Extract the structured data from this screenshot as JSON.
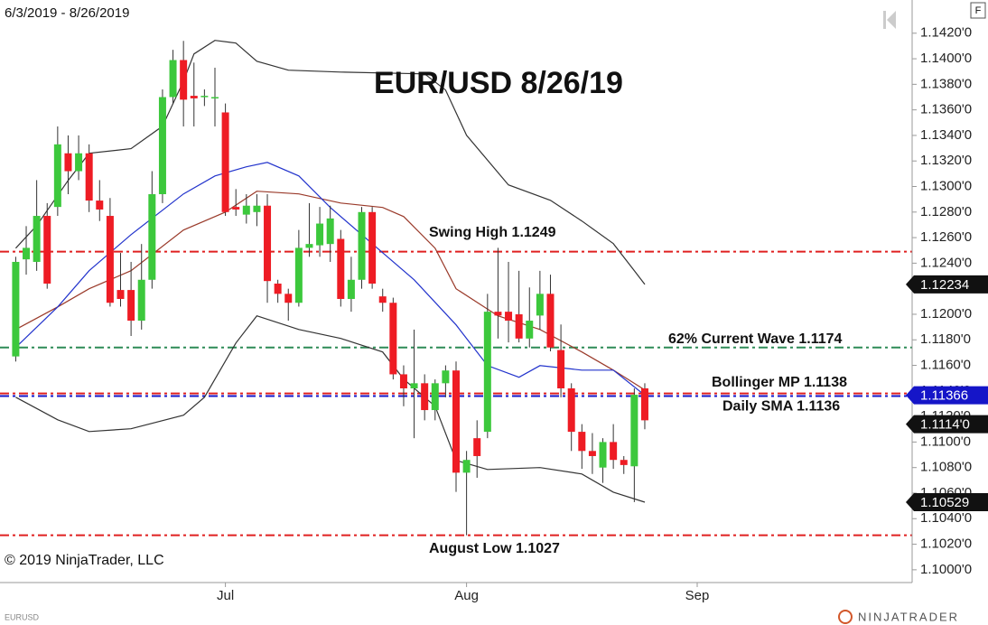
{
  "chart_data": {
    "type": "candlestick",
    "title": "EUR/USD 8/26/19",
    "date_range": "6/3/2019 - 8/26/2019",
    "copyright": "© 2019 NinjaTrader, LLC",
    "symbol": "EURUSD",
    "brand": "NINJATRADER",
    "up_color": "#3cc83c",
    "down_color": "#ee1c24",
    "open": [
      1.1167,
      1.1243,
      1.1241,
      1.1277,
      1.1284,
      1.1326,
      1.1312,
      1.1326,
      1.1289,
      1.1277,
      1.1219,
      1.1219,
      1.1195,
      1.1227,
      1.1294,
      1.137,
      1.1399,
      1.1371,
      1.137,
      1.137,
      1.1358,
      1.1284,
      1.1278,
      1.128,
      1.1285,
      1.1224,
      1.1216,
      1.1209,
      1.1252,
      1.1254,
      1.1255,
      1.1259,
      1.1212,
      1.1227,
      1.128,
      1.1214,
      1.1209,
      1.1153,
      1.1142,
      1.1146,
      1.1125,
      1.1146,
      1.1156,
      1.1076,
      1.1103,
      1.1108,
      1.1202,
      1.1202,
      1.12,
      1.1181,
      1.1199,
      1.1216,
      1.1172,
      1.1142,
      1.1108,
      1.1093,
      1.108,
      1.11,
      1.1086,
      1.1081,
      1.1142
    ],
    "high": [
      1.1245,
      1.1269,
      1.1305,
      1.1287,
      1.1347,
      1.134,
      1.134,
      1.1333,
      1.1305,
      1.1291,
      1.1248,
      1.1241,
      1.1255,
      1.1312,
      1.1376,
      1.1407,
      1.1414,
      1.1397,
      1.1376,
      1.1393,
      1.1365,
      1.1298,
      1.1294,
      1.1294,
      1.1294,
      1.1227,
      1.122,
      1.1266,
      1.1287,
      1.1284,
      1.1285,
      1.1266,
      1.1245,
      1.1284,
      1.1284,
      1.122,
      1.1213,
      1.116,
      1.1188,
      1.1153,
      1.1149,
      1.116,
      1.1163,
      1.1093,
      1.1117,
      1.1216,
      1.1252,
      1.1241,
      1.1234,
      1.1221,
      1.1234,
      1.1231,
      1.1192,
      1.1146,
      1.1114,
      1.1107,
      1.1103,
      1.1114,
      1.1089,
      1.1142,
      1.1146
    ],
    "low": [
      1.1163,
      1.1231,
      1.1234,
      1.122,
      1.1277,
      1.1294,
      1.1305,
      1.128,
      1.1273,
      1.1206,
      1.1206,
      1.1183,
      1.1188,
      1.122,
      1.1287,
      1.1365,
      1.1347,
      1.1347,
      1.1363,
      1.1347,
      1.1277,
      1.1277,
      1.1271,
      1.1269,
      1.1209,
      1.1209,
      1.1195,
      1.1206,
      1.1245,
      1.1245,
      1.1241,
      1.1206,
      1.1202,
      1.122,
      1.122,
      1.1202,
      1.1149,
      1.1128,
      1.1103,
      1.1117,
      1.1117,
      1.1135,
      1.1061,
      1.1027,
      1.1072,
      1.1103,
      1.1181,
      1.1178,
      1.1178,
      1.1174,
      1.1188,
      1.1171,
      1.1135,
      1.1093,
      1.1079,
      1.1075,
      1.1068,
      1.1079,
      1.1075,
      1.1053,
      1.111
    ],
    "close": [
      1.1241,
      1.1252,
      1.1277,
      1.1224,
      1.1333,
      1.1312,
      1.1326,
      1.1289,
      1.1282,
      1.1209,
      1.1212,
      1.1195,
      1.1227,
      1.1294,
      1.137,
      1.1399,
      1.1368,
      1.1369,
      1.1371,
      1.137,
      1.128,
      1.1282,
      1.1285,
      1.1285,
      1.1226,
      1.1216,
      1.1209,
      1.1252,
      1.1255,
      1.1271,
      1.1275,
      1.1212,
      1.1227,
      1.128,
      1.1224,
      1.1209,
      1.1153,
      1.1142,
      1.1146,
      1.1125,
      1.1146,
      1.1156,
      1.1076,
      1.1086,
      1.1089,
      1.1202,
      1.1199,
      1.1195,
      1.1181,
      1.1195,
      1.1216,
      1.1174,
      1.1142,
      1.1108,
      1.1093,
      1.1089,
      1.11,
      1.1086,
      1.1082,
      1.1137,
      1.1117
    ],
    "xlim": [
      -1.5,
      85.5
    ],
    "xticks": [
      {
        "value": 20,
        "label": "Jul"
      },
      {
        "value": 43,
        "label": "Aug"
      },
      {
        "value": 65,
        "label": "Sep"
      }
    ],
    "ylim": [
      1.099,
      1.1446
    ],
    "yticks": [
      {
        "value": 1.1,
        "label": "1.1000'0"
      },
      {
        "value": 1.102,
        "label": "1.1020'0"
      },
      {
        "value": 1.104,
        "label": "1.1040'0"
      },
      {
        "value": 1.106,
        "label": "1.1060'0"
      },
      {
        "value": 1.108,
        "label": "1.1080'0"
      },
      {
        "value": 1.11,
        "label": "1.1100'0"
      },
      {
        "value": 1.112,
        "label": "1.1120'0"
      },
      {
        "value": 1.114,
        "label": "1.1140'0"
      },
      {
        "value": 1.116,
        "label": "1.1160'0"
      },
      {
        "value": 1.118,
        "label": "1.1180'0"
      },
      {
        "value": 1.12,
        "label": "1.1200'0"
      },
      {
        "value": 1.122,
        "label": "1.1220'0"
      },
      {
        "value": 1.124,
        "label": "1.1240'0"
      },
      {
        "value": 1.126,
        "label": "1.1260'0"
      },
      {
        "value": 1.128,
        "label": "1.1280'0"
      },
      {
        "value": 1.13,
        "label": "1.1300'0"
      },
      {
        "value": 1.132,
        "label": "1.1320'0"
      },
      {
        "value": 1.134,
        "label": "1.1340'0"
      },
      {
        "value": 1.136,
        "label": "1.1360'0"
      },
      {
        "value": 1.138,
        "label": "1.1380'0"
      },
      {
        "value": 1.14,
        "label": "1.1400'0"
      },
      {
        "value": 1.142,
        "label": "1.1420'0"
      }
    ],
    "lines": [
      {
        "color": "#333333",
        "x": [
          0,
          2,
          5,
          7,
          11,
          14,
          16,
          17,
          19,
          21,
          23,
          26,
          31,
          39,
          41,
          43,
          47,
          51,
          54,
          57,
          59,
          60
        ],
        "values": [
          1.12517,
          1.12694,
          1.13048,
          1.1326,
          1.13296,
          1.13472,
          1.13826,
          1.14038,
          1.14144,
          1.14123,
          1.13981,
          1.13911,
          1.13896,
          1.13882,
          1.13755,
          1.13401,
          1.13013,
          1.12892,
          1.1273,
          1.12553,
          1.12341,
          1.12234
        ]
      },
      {
        "color": "#333333",
        "x": [
          0,
          4,
          7,
          11,
          16,
          18,
          21,
          23,
          27,
          31,
          35,
          37,
          40,
          42,
          45,
          50,
          54,
          57,
          60
        ],
        "values": [
          1.11351,
          1.11174,
          1.11082,
          1.11104,
          1.1121,
          1.11351,
          1.11775,
          1.11988,
          1.11881,
          1.11811,
          1.11705,
          1.11492,
          1.1128,
          1.10856,
          1.10785,
          1.108,
          1.1075,
          1.10608,
          1.10529
        ]
      },
      {
        "color": "#9a3a2a",
        "x": [
          0,
          4,
          7,
          11,
          16,
          20,
          23,
          27,
          31,
          35,
          37,
          40,
          42,
          46,
          50,
          54,
          57,
          60
        ],
        "values": [
          1.11881,
          1.12058,
          1.122,
          1.12341,
          1.12659,
          1.128,
          1.12963,
          1.12942,
          1.12871,
          1.12836,
          1.12765,
          1.12517,
          1.122,
          1.11988,
          1.11881,
          1.11705,
          1.11563,
          1.11408
        ]
      },
      {
        "color": "#2233cc",
        "x": [
          0,
          4,
          7,
          11,
          16,
          19,
          22,
          24,
          27,
          30,
          35,
          38,
          42,
          45,
          48,
          50,
          54,
          57,
          60
        ],
        "values": [
          1.1174,
          1.12058,
          1.12341,
          1.12623,
          1.12942,
          1.13083,
          1.13154,
          1.13189,
          1.13083,
          1.12836,
          1.12482,
          1.1227,
          1.11917,
          1.11598,
          1.11507,
          1.11598,
          1.11563,
          1.11563,
          1.11366
        ]
      }
    ],
    "levels": [
      {
        "value": 1.1249,
        "color": "#e02020",
        "label": "Swing High 1.1249"
      },
      {
        "value": 1.1174,
        "color": "#2e8b57",
        "label": "62%  Current Wave 1.1174"
      },
      {
        "value": 1.1138,
        "color": "#e02020",
        "label": "Bollinger MP 1.1138"
      },
      {
        "value": 1.1136,
        "color": "#1515c8",
        "label": "Daily SMA 1.1136"
      },
      {
        "value": 1.1027,
        "color": "#e02020",
        "label": "August  Low 1.1027"
      }
    ],
    "price_markers": [
      {
        "value": 1.12234,
        "color": "#111111"
      },
      {
        "value": 1.11366,
        "color": "#1515c8"
      },
      {
        "value": 1.1114,
        "label": "1.1114'0",
        "color": "#111111"
      },
      {
        "value": 1.10529,
        "color": "#111111"
      }
    ]
  }
}
